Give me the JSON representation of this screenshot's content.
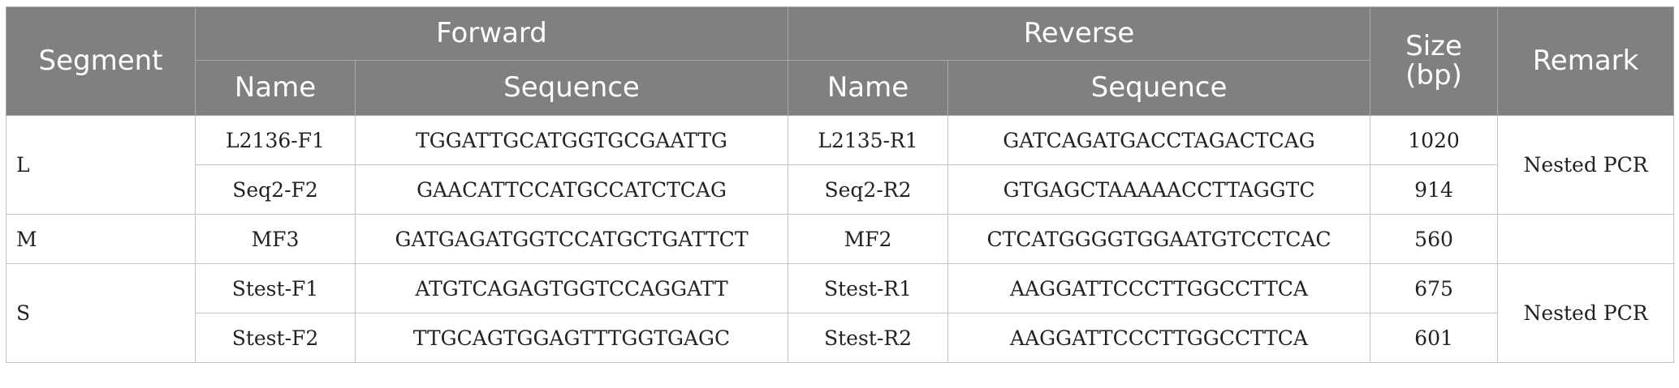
{
  "headers": {
    "segment": "Segment",
    "forward": "Forward",
    "reverse": "Reverse",
    "name": "Name",
    "sequence": "Sequence",
    "size": "Size (bp)",
    "remark": "Remark"
  },
  "groups": [
    {
      "segment": "L",
      "remark": "Nested PCR",
      "rows": [
        {
          "fwd_name": "L2136-F1",
          "fwd_seq": "TGGATTGCATGGTGCGAATTG",
          "rev_name": "L2135-R1",
          "rev_seq": "GATCAGATGACCTAGACTCAG",
          "size": "1020"
        },
        {
          "fwd_name": "Seq2-F2",
          "fwd_seq": "GAACATTCCATGCCATCTCAG",
          "rev_name": "Seq2-R2",
          "rev_seq": "GTGAGCTAAAAACCTTAGGTC",
          "size": "914"
        }
      ]
    },
    {
      "segment": "M",
      "remark": "",
      "rows": [
        {
          "fwd_name": "MF3",
          "fwd_seq": "GATGAGATGGTCCATGCTGATTCT",
          "rev_name": "MF2",
          "rev_seq": "CTCATGGGGTGGAATGTCCTCAC",
          "size": "560"
        }
      ]
    },
    {
      "segment": "S",
      "remark": "Nested PCR",
      "rows": [
        {
          "fwd_name": "Stest-F1",
          "fwd_seq": "ATGTCAGAGTGGTCCAGGATT",
          "rev_name": "Stest-R1",
          "rev_seq": "AAGGATTCCCTTGGCCTTCA",
          "size": "675"
        },
        {
          "fwd_name": "Stest-F2",
          "fwd_seq": "TTGCAGTGGAGTTTGGTGAGC",
          "rev_name": "Stest-R2",
          "rev_seq": "AAGGATTCCCTTGGCCTTCA",
          "size": "601"
        }
      ]
    }
  ]
}
